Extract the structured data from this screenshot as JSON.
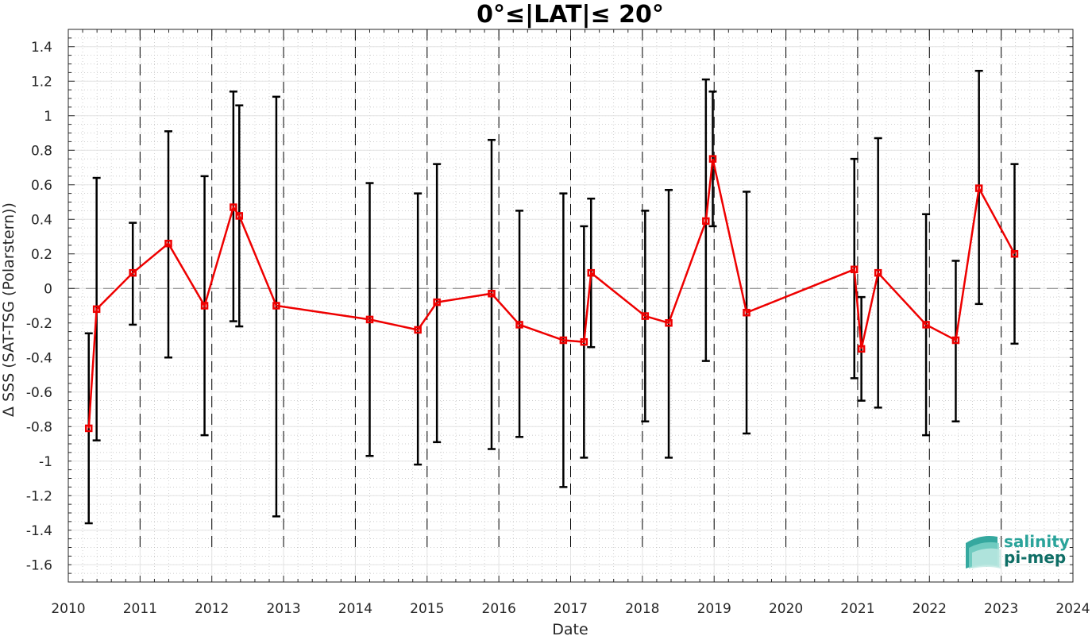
{
  "chart_data": {
    "type": "line",
    "title": "0°≤|LAT|≤ 20°",
    "xlabel": "Date",
    "ylabel": "Δ SSS (SAT-TSG (Polarstern))",
    "xlim": [
      "2010-01-01",
      "2024-01-01"
    ],
    "ylim": [
      -1.7,
      1.5
    ],
    "xticks": [
      "2010",
      "2011",
      "2012",
      "2013",
      "2014",
      "2015",
      "2016",
      "2017",
      "2018",
      "2019",
      "2020",
      "2021",
      "2022",
      "2023",
      "2024"
    ],
    "yticks": [
      -1.6,
      -1.4,
      -1.2,
      -1,
      -0.8,
      -0.6,
      -0.4,
      -0.2,
      0,
      0.2,
      0.4,
      0.6,
      0.8,
      1,
      1.2,
      1.4
    ],
    "ytick_labels": [
      "-1.6",
      "-1.4",
      "-1.2",
      "-1",
      "-0.8",
      "-0.6",
      "-0.4",
      "-0.2",
      "0",
      "0.2",
      "0.4",
      "0.6",
      "0.8",
      "1",
      "1.2",
      "1.4"
    ],
    "grid": "minor-dotted",
    "reference_line": {
      "y": 0,
      "style": "dashed",
      "color": "#808080"
    },
    "vertical_dashed_lines": [
      "2011-01-01",
      "2012-01-01",
      "2013-01-01",
      "2014-01-01",
      "2015-01-01",
      "2016-01-01",
      "2017-01-01",
      "2018-01-01",
      "2019-01-01",
      "2020-01-01",
      "2021-01-01",
      "2022-01-01",
      "2023-01-01"
    ],
    "series": [
      {
        "color": "#ee0000",
        "marker": "square",
        "points": [
          {
            "date": "2010-04-15",
            "y": -0.81,
            "lo": -1.36,
            "hi": -0.26
          },
          {
            "date": "2010-05-25",
            "y": -0.12,
            "lo": -0.88,
            "hi": 0.64
          },
          {
            "date": "2010-11-25",
            "y": 0.09,
            "lo": -0.21,
            "hi": 0.38
          },
          {
            "date": "2011-05-25",
            "y": 0.26,
            "lo": -0.4,
            "hi": 0.91
          },
          {
            "date": "2011-11-25",
            "y": -0.1,
            "lo": -0.85,
            "hi": 0.65
          },
          {
            "date": "2012-04-20",
            "y": 0.47,
            "lo": -0.19,
            "hi": 1.14
          },
          {
            "date": "2012-05-20",
            "y": 0.42,
            "lo": -0.22,
            "hi": 1.06
          },
          {
            "date": "2012-11-25",
            "y": -0.1,
            "lo": -1.32,
            "hi": 1.11
          },
          {
            "date": "2014-03-15",
            "y": -0.18,
            "lo": -0.97,
            "hi": 0.61
          },
          {
            "date": "2014-11-15",
            "y": -0.24,
            "lo": -1.02,
            "hi": 0.55
          },
          {
            "date": "2015-02-20",
            "y": -0.08,
            "lo": -0.89,
            "hi": 0.72
          },
          {
            "date": "2015-11-25",
            "y": -0.03,
            "lo": -0.93,
            "hi": 0.86
          },
          {
            "date": "2016-04-15",
            "y": -0.21,
            "lo": -0.86,
            "hi": 0.45
          },
          {
            "date": "2016-11-25",
            "y": -0.3,
            "lo": -1.15,
            "hi": 0.55
          },
          {
            "date": "2017-03-10",
            "y": -0.31,
            "lo": -0.98,
            "hi": 0.36
          },
          {
            "date": "2017-04-15",
            "y": 0.09,
            "lo": -0.34,
            "hi": 0.52
          },
          {
            "date": "2018-01-15",
            "y": -0.16,
            "lo": -0.77,
            "hi": 0.45
          },
          {
            "date": "2018-05-15",
            "y": -0.2,
            "lo": -0.98,
            "hi": 0.57
          },
          {
            "date": "2018-11-20",
            "y": 0.39,
            "lo": -0.42,
            "hi": 1.21
          },
          {
            "date": "2018-12-25",
            "y": 0.75,
            "lo": 0.36,
            "hi": 1.14
          },
          {
            "date": "2019-06-15",
            "y": -0.14,
            "lo": -0.84,
            "hi": 0.56
          },
          {
            "date": "2020-12-15",
            "y": 0.11,
            "lo": -0.52,
            "hi": 0.75
          },
          {
            "date": "2021-01-20",
            "y": -0.35,
            "lo": -0.65,
            "hi": -0.05
          },
          {
            "date": "2021-04-15",
            "y": 0.09,
            "lo": -0.69,
            "hi": 0.87
          },
          {
            "date": "2021-12-15",
            "y": -0.21,
            "lo": -0.85,
            "hi": 0.43
          },
          {
            "date": "2022-05-15",
            "y": -0.3,
            "lo": -0.77,
            "hi": 0.16
          },
          {
            "date": "2022-09-10",
            "y": 0.58,
            "lo": -0.09,
            "hi": 1.26
          },
          {
            "date": "2023-03-10",
            "y": 0.2,
            "lo": -0.32,
            "hi": 0.72
          }
        ]
      }
    ],
    "errorbar_color": "#000000"
  },
  "logo": {
    "line1": "salinity",
    "line2": "pi-mep",
    "color1": "#2aa39a",
    "color2": "#0f6e66"
  }
}
